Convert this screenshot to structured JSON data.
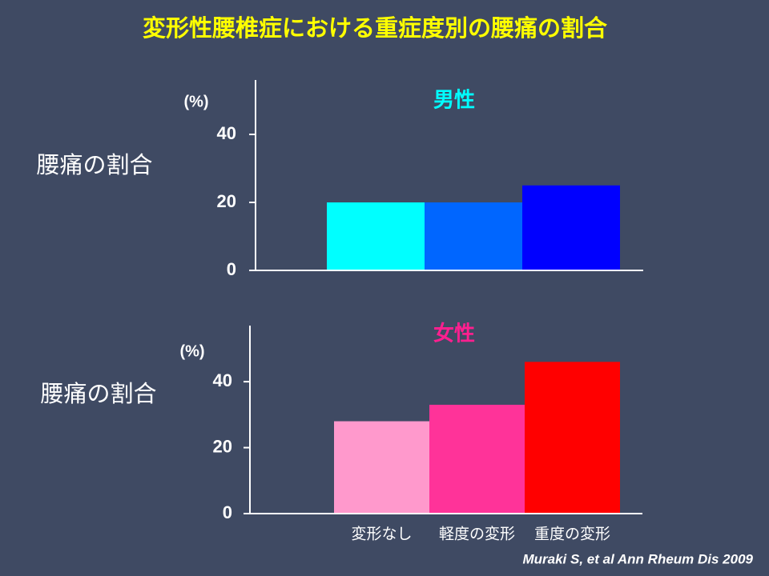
{
  "title": "変形性腰椎症における重症度別の腰痛の割合",
  "citation": "Muraki S, et al Ann Rheum Dis 2009",
  "chart_data": [
    {
      "type": "bar",
      "subtitle": "男性",
      "subtitle_color": "#00ffff",
      "ylabel": "腰痛の割合",
      "yunit": "(%)",
      "categories": [
        null,
        null,
        null
      ],
      "values": [
        20,
        20,
        25
      ],
      "colors": [
        "#00ffff",
        "#0066ff",
        "#0000ff"
      ],
      "ylim": [
        0,
        56
      ],
      "yticks": [
        0,
        20,
        40
      ]
    },
    {
      "type": "bar",
      "subtitle": "女性",
      "subtitle_color": "#ff1f8f",
      "ylabel": "腰痛の割合",
      "yunit": "(%)",
      "categories": [
        "変形なし",
        "軽度の変形",
        "重度の変形"
      ],
      "values": [
        28,
        33,
        46
      ],
      "colors": [
        "#ff99cc",
        "#ff3399",
        "#ff0000"
      ],
      "ylim": [
        0,
        57
      ],
      "yticks": [
        0,
        20,
        40
      ]
    }
  ]
}
